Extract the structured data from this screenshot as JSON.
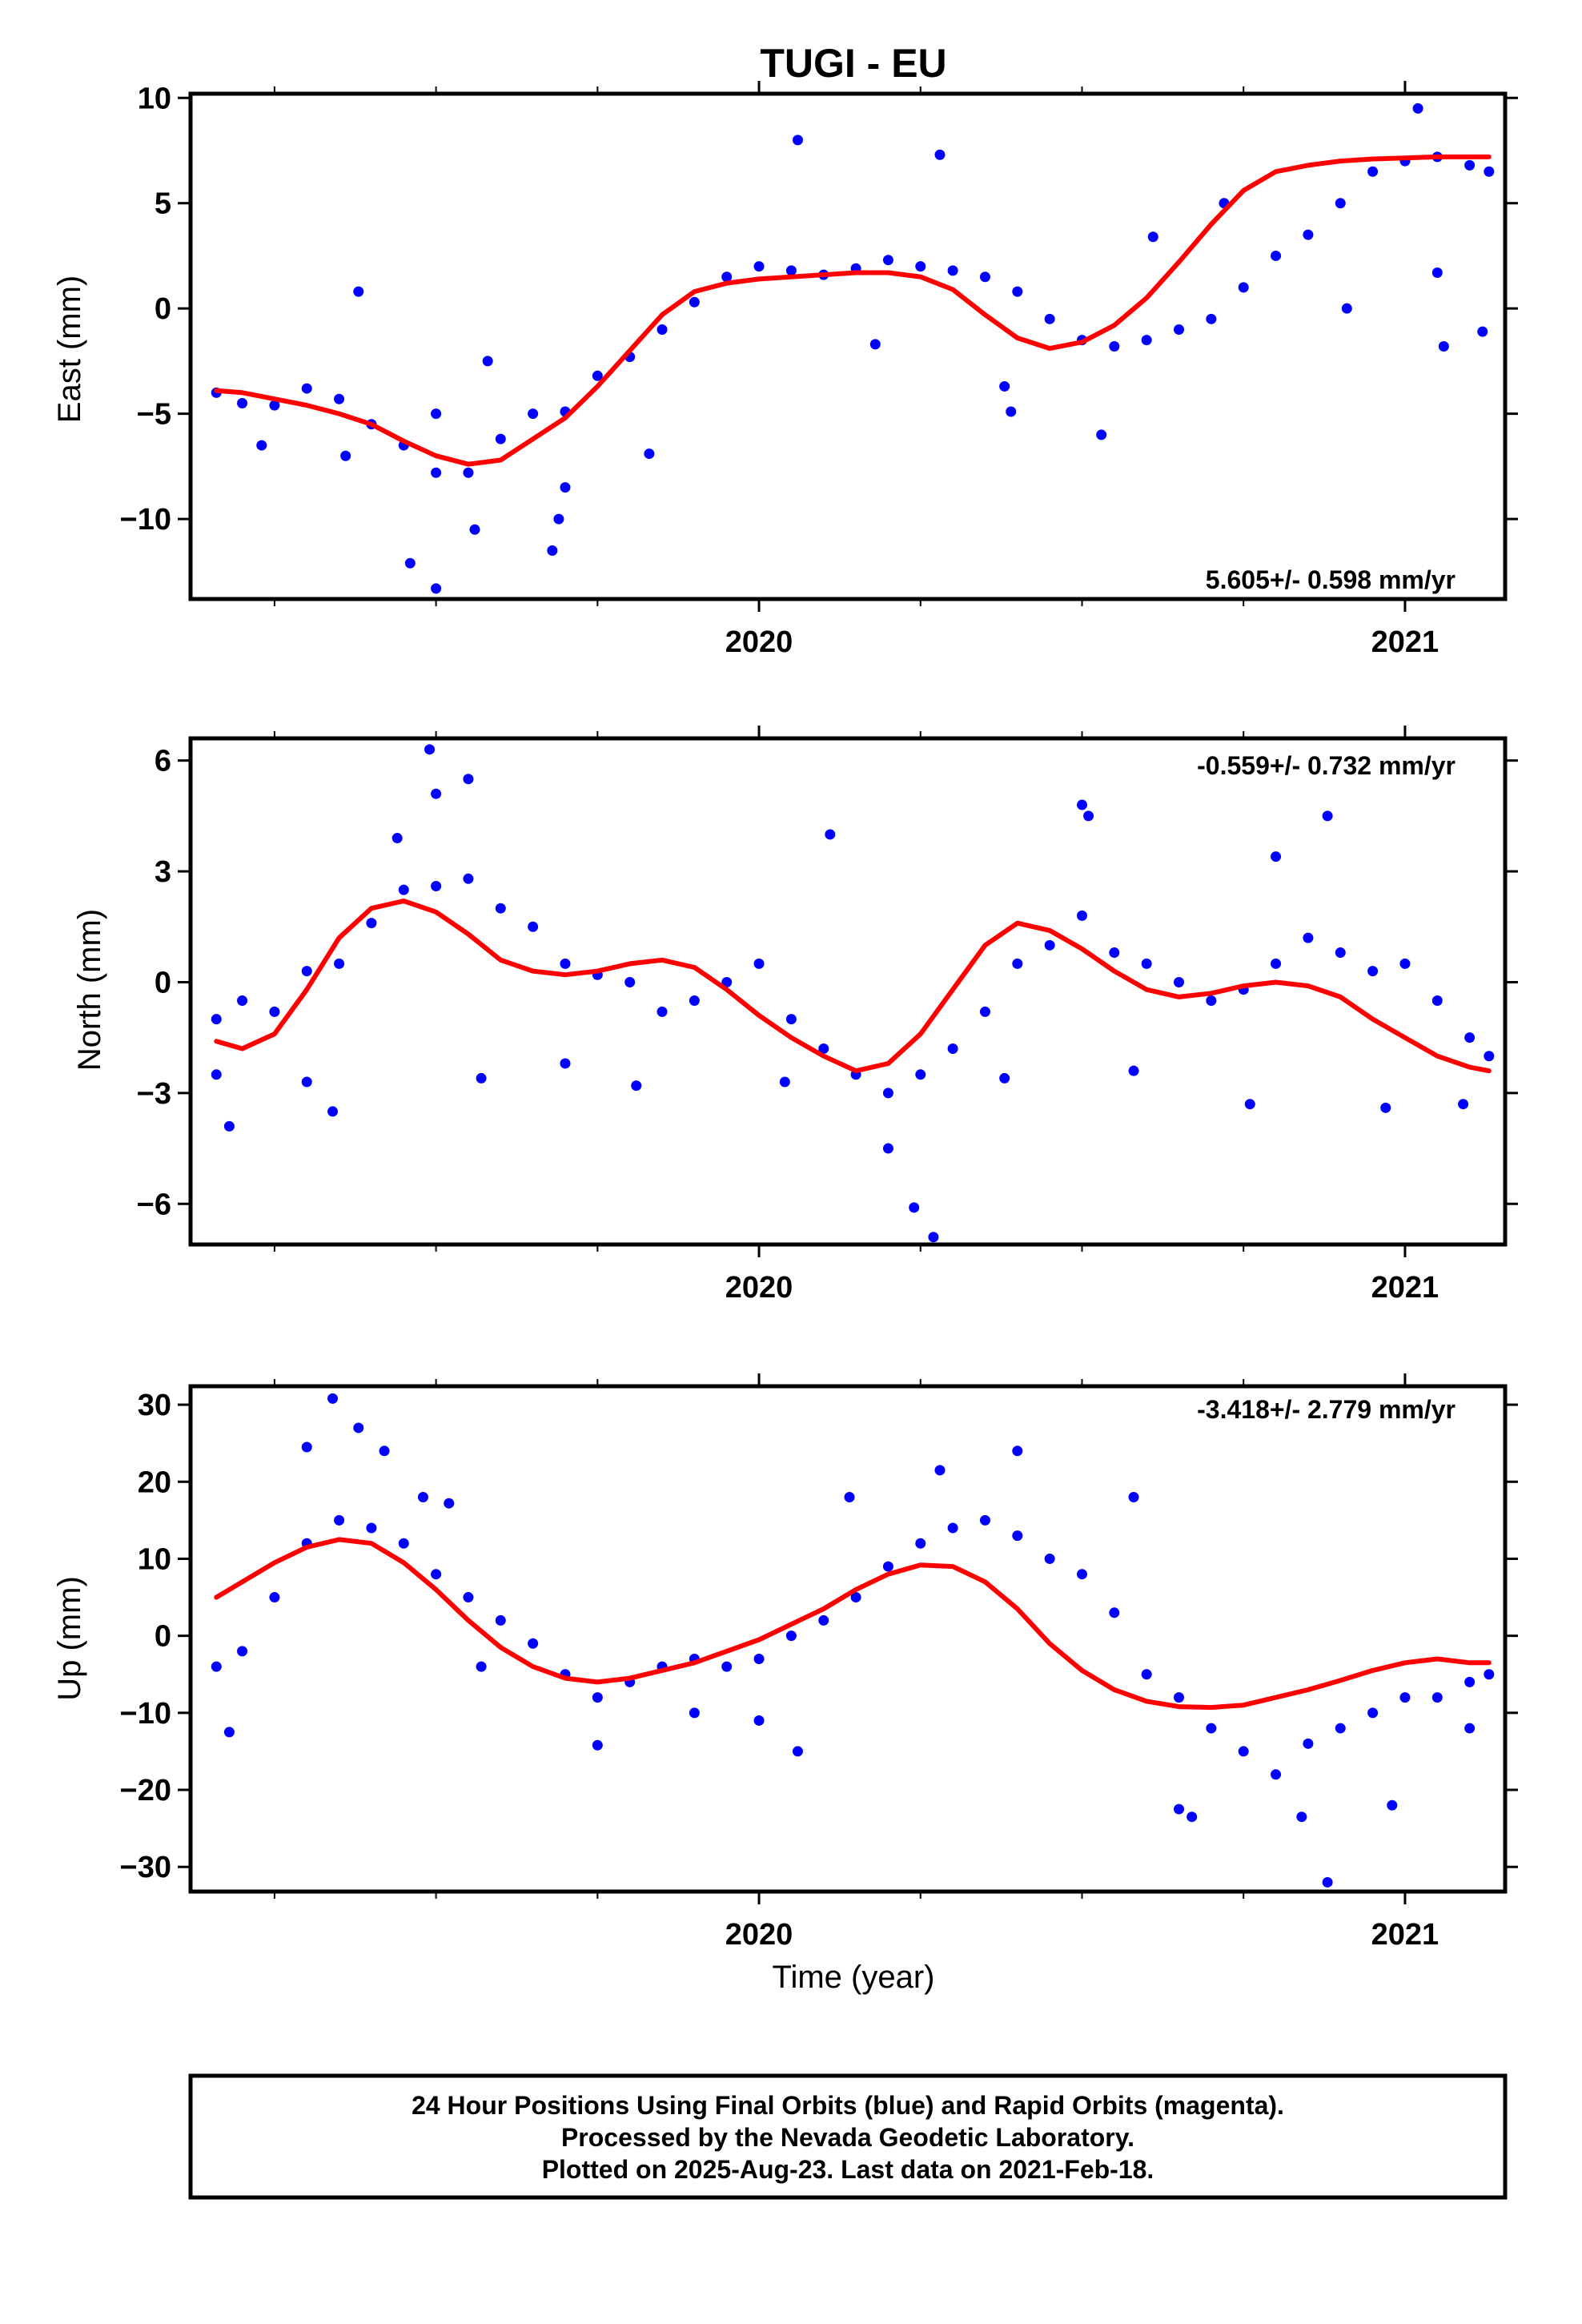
{
  "title": "TUGI - EU",
  "caption": {
    "line1": "24 Hour Positions Using Final Orbits (blue) and Rapid Orbits (magenta).",
    "line2": "Processed by the Nevada Geodetic Laboratory.",
    "line3": "Plotted on 2025-Aug-23. Last data on 2021-Feb-18."
  },
  "colors": {
    "points": "#0000ff",
    "model": "#ff0000",
    "frame": "#000000"
  },
  "chart_data": [
    {
      "type": "scatter",
      "ylabel": "East (mm)",
      "xlabel": "",
      "rate_label": "5.605+/- 0.598 mm/yr",
      "rate_position": "bottom-right",
      "xlim": [
        2019.12,
        2021.155
      ],
      "ylim": [
        -13.8,
        10.2
      ],
      "xticks": [
        2020,
        2021
      ],
      "xminor": [
        2019.25,
        2019.5,
        2019.75,
        2020.25,
        2020.5,
        2020.75
      ],
      "yticks": [
        10,
        5,
        0,
        -5,
        -10
      ],
      "grid": false,
      "series": [
        {
          "x": [
            2019.16,
            2019.2,
            2019.25,
            2019.3,
            2019.35,
            2019.4,
            2019.45,
            2019.5,
            2019.55,
            2019.6,
            2019.65,
            2019.7,
            2019.75,
            2019.8,
            2019.85,
            2019.9,
            2019.95,
            2020.0,
            2020.05,
            2020.1,
            2020.15,
            2020.2,
            2020.25,
            2020.3,
            2020.35,
            2020.4,
            2020.45,
            2020.5,
            2020.55,
            2020.6,
            2020.65,
            2020.7,
            2020.75,
            2020.8,
            2020.85,
            2020.9,
            2020.95,
            2021.0,
            2021.05,
            2021.1,
            2021.13
          ],
          "y": [
            -4.0,
            -4.5,
            -4.6,
            -3.8,
            -4.3,
            -5.5,
            -6.5,
            -7.8,
            -7.8,
            -6.2,
            -5.0,
            -4.9,
            -3.2,
            -2.3,
            -1.0,
            0.3,
            1.5,
            2.0,
            1.8,
            1.6,
            1.9,
            2.3,
            2.0,
            1.8,
            1.5,
            0.8,
            -0.5,
            -1.5,
            -1.8,
            -1.5,
            -1.0,
            -0.5,
            1.0,
            2.5,
            3.5,
            5.0,
            6.5,
            7.0,
            7.2,
            6.8,
            6.5
          ]
        },
        {
          "x": [
            2019.23,
            2019.36,
            2019.38,
            2019.46,
            2019.5,
            2019.5,
            2019.56,
            2019.58,
            2019.68,
            2019.69,
            2019.7,
            2019.83,
            2020.06,
            2020.18,
            2020.28,
            2020.38,
            2020.39,
            2020.53,
            2020.61,
            2020.72,
            2020.91,
            2021.02,
            2021.05,
            2021.06,
            2021.12
          ],
          "y": [
            -6.5,
            -7.0,
            0.8,
            -12.1,
            -13.3,
            -5.0,
            -10.5,
            -2.5,
            -11.5,
            -10.0,
            -8.5,
            -6.9,
            8.0,
            -1.7,
            7.3,
            -3.7,
            -4.9,
            -6.0,
            3.4,
            5.0,
            0.0,
            9.5,
            1.7,
            -1.8,
            -1.1
          ]
        },
        {
          "x": [
            2019.16,
            2019.2,
            2019.25,
            2019.3,
            2019.35,
            2019.4,
            2019.45,
            2019.5,
            2019.55,
            2019.6,
            2019.65,
            2019.7,
            2019.75,
            2019.8,
            2019.85,
            2019.9,
            2019.95,
            2020.0,
            2020.05,
            2020.1,
            2020.15,
            2020.2,
            2020.25,
            2020.3,
            2020.35,
            2020.4,
            2020.45,
            2020.5,
            2020.55,
            2020.6,
            2020.65,
            2020.7,
            2020.75,
            2020.8,
            2020.85,
            2020.9,
            2020.95,
            2021.0,
            2021.05,
            2021.1,
            2021.13
          ],
          "y": [
            -3.9,
            -4.0,
            -4.3,
            -4.6,
            -5.0,
            -5.5,
            -6.3,
            -7.0,
            -7.4,
            -7.2,
            -6.2,
            -5.2,
            -3.7,
            -2.0,
            -0.3,
            0.8,
            1.2,
            1.4,
            1.5,
            1.6,
            1.7,
            1.7,
            1.5,
            0.9,
            -0.3,
            -1.4,
            -1.9,
            -1.6,
            -0.8,
            0.5,
            2.2,
            4.0,
            5.6,
            6.5,
            6.8,
            7.0,
            7.1,
            7.15,
            7.2,
            7.2,
            7.2
          ]
        }
      ],
      "series_roles": [
        "daily positions",
        "outliers",
        "model fit"
      ]
    },
    {
      "type": "scatter",
      "ylabel": "North (mm)",
      "xlabel": "",
      "rate_label": "-0.559+/- 0.732 mm/yr",
      "rate_position": "top-right",
      "xlim": [
        2019.12,
        2021.155
      ],
      "ylim": [
        -7.1,
        6.6
      ],
      "xticks": [
        2020,
        2021
      ],
      "xminor": [
        2019.25,
        2019.5,
        2019.75,
        2020.25,
        2020.5,
        2020.75
      ],
      "yticks": [
        6,
        3,
        0,
        -3,
        -6
      ],
      "grid": false,
      "series": [
        {
          "x": [
            2019.16,
            2019.2,
            2019.25,
            2019.3,
            2019.35,
            2019.4,
            2019.45,
            2019.5,
            2019.55,
            2019.6,
            2019.65,
            2019.7,
            2019.75,
            2019.8,
            2019.85,
            2019.9,
            2019.95,
            2020.0,
            2020.05,
            2020.1,
            2020.15,
            2020.2,
            2020.25,
            2020.3,
            2020.35,
            2020.4,
            2020.45,
            2020.5,
            2020.55,
            2020.6,
            2020.65,
            2020.7,
            2020.75,
            2020.8,
            2020.85,
            2020.9,
            2020.95,
            2021.0,
            2021.05,
            2021.1,
            2021.13
          ],
          "y": [
            -1.0,
            -0.5,
            -0.8,
            0.3,
            0.5,
            1.6,
            2.5,
            2.6,
            2.8,
            2.0,
            1.5,
            0.5,
            0.2,
            0.0,
            -0.8,
            -0.5,
            0.0,
            0.5,
            -1.0,
            -1.8,
            -2.5,
            -3.0,
            -2.5,
            -1.8,
            -0.8,
            0.5,
            1.0,
            1.8,
            0.8,
            0.5,
            0.0,
            -0.5,
            -0.2,
            0.5,
            1.2,
            0.8,
            0.3,
            0.5,
            -0.5,
            -1.5,
            -2.0
          ]
        },
        {
          "x": [
            2019.16,
            2019.18,
            2019.3,
            2019.34,
            2019.44,
            2019.49,
            2019.5,
            2019.55,
            2019.57,
            2019.7,
            2019.81,
            2020.04,
            2020.11,
            2020.2,
            2020.24,
            2020.27,
            2020.38,
            2020.5,
            2020.51,
            2020.58,
            2020.76,
            2020.8,
            2020.88,
            2020.97,
            2021.09
          ],
          "y": [
            -2.5,
            -3.9,
            -2.7,
            -3.5,
            3.9,
            6.3,
            5.1,
            5.5,
            -2.6,
            -2.2,
            -2.8,
            -2.7,
            4.0,
            -4.5,
            -6.1,
            -6.9,
            -2.6,
            4.8,
            4.5,
            -2.4,
            -3.3,
            3.4,
            4.5,
            -3.4,
            -3.3
          ]
        },
        {
          "x": [
            2019.16,
            2019.2,
            2019.25,
            2019.3,
            2019.35,
            2019.4,
            2019.45,
            2019.5,
            2019.55,
            2019.6,
            2019.65,
            2019.7,
            2019.75,
            2019.8,
            2019.85,
            2019.9,
            2019.95,
            2020.0,
            2020.05,
            2020.1,
            2020.15,
            2020.2,
            2020.25,
            2020.3,
            2020.35,
            2020.4,
            2020.45,
            2020.5,
            2020.55,
            2020.6,
            2020.65,
            2020.7,
            2020.75,
            2020.8,
            2020.85,
            2020.9,
            2020.95,
            2021.0,
            2021.05,
            2021.1,
            2021.13
          ],
          "y": [
            -1.6,
            -1.8,
            -1.4,
            -0.2,
            1.2,
            2.0,
            2.2,
            1.9,
            1.3,
            0.6,
            0.3,
            0.2,
            0.3,
            0.5,
            0.6,
            0.4,
            -0.2,
            -0.9,
            -1.5,
            -2.0,
            -2.4,
            -2.2,
            -1.4,
            -0.2,
            1.0,
            1.6,
            1.4,
            0.9,
            0.3,
            -0.2,
            -0.4,
            -0.3,
            -0.1,
            0.0,
            -0.1,
            -0.4,
            -1.0,
            -1.5,
            -2.0,
            -2.3,
            -2.4
          ]
        }
      ],
      "series_roles": [
        "daily positions",
        "outliers",
        "model fit"
      ]
    },
    {
      "type": "scatter",
      "ylabel": "Up (mm)",
      "xlabel": "Time (year)",
      "rate_label": "-3.418+/- 2.779 mm/yr",
      "rate_position": "top-right",
      "xlim": [
        2019.12,
        2021.155
      ],
      "ylim": [
        -33.2,
        32.4
      ],
      "xticks": [
        2020,
        2021
      ],
      "xminor": [
        2019.25,
        2019.5,
        2019.75,
        2020.25,
        2020.5,
        2020.75
      ],
      "yticks": [
        30,
        20,
        10,
        0,
        -10,
        -20,
        -30
      ],
      "grid": false,
      "series": [
        {
          "x": [
            2019.16,
            2019.2,
            2019.25,
            2019.3,
            2019.35,
            2019.4,
            2019.45,
            2019.5,
            2019.55,
            2019.6,
            2019.65,
            2019.7,
            2019.75,
            2019.8,
            2019.85,
            2019.9,
            2019.95,
            2020.0,
            2020.05,
            2020.1,
            2020.15,
            2020.2,
            2020.25,
            2020.3,
            2020.35,
            2020.4,
            2020.45,
            2020.5,
            2020.55,
            2020.6,
            2020.65,
            2020.7,
            2020.75,
            2020.8,
            2020.85,
            2020.9,
            2020.95,
            2021.0,
            2021.05,
            2021.1,
            2021.13
          ],
          "y": [
            -4.0,
            -2.0,
            5.0,
            12.0,
            15.0,
            14.0,
            12.0,
            8.0,
            5.0,
            2.0,
            -1.0,
            -5.0,
            -8.0,
            -6.0,
            -4.0,
            -3.0,
            -4.0,
            -3.0,
            0.0,
            2.0,
            5.0,
            9.0,
            12.0,
            14.0,
            15.0,
            13.0,
            10.0,
            8.0,
            3.0,
            -5.0,
            -8.0,
            -12.0,
            -15.0,
            -18.0,
            -14.0,
            -12.0,
            -10.0,
            -8.0,
            -8.0,
            -6.0,
            -5.0
          ]
        },
        {
          "x": [
            2019.18,
            2019.3,
            2019.34,
            2019.38,
            2019.42,
            2019.48,
            2019.52,
            2019.57,
            2019.75,
            2019.9,
            2020.0,
            2020.06,
            2020.14,
            2020.28,
            2020.4,
            2020.58,
            2020.65,
            2020.67,
            2020.84,
            2020.88,
            2020.98,
            2021.1
          ],
          "y": [
            -12.5,
            24.5,
            30.8,
            27.0,
            24.0,
            18.0,
            17.2,
            -4.0,
            -14.2,
            -10.0,
            -11.0,
            -15.0,
            18.0,
            21.5,
            24.0,
            18.0,
            -22.5,
            -23.5,
            -23.5,
            -32.0,
            -22.0,
            -12.0
          ]
        },
        {
          "x": [
            2019.16,
            2019.2,
            2019.25,
            2019.3,
            2019.35,
            2019.4,
            2019.45,
            2019.5,
            2019.55,
            2019.6,
            2019.65,
            2019.7,
            2019.75,
            2019.8,
            2019.85,
            2019.9,
            2019.95,
            2020.0,
            2020.05,
            2020.1,
            2020.15,
            2020.2,
            2020.25,
            2020.3,
            2020.35,
            2020.4,
            2020.45,
            2020.5,
            2020.55,
            2020.6,
            2020.65,
            2020.7,
            2020.75,
            2020.8,
            2020.85,
            2020.9,
            2020.95,
            2021.0,
            2021.05,
            2021.1,
            2021.13
          ],
          "y": [
            5.0,
            7.0,
            9.5,
            11.5,
            12.5,
            12.0,
            9.5,
            6.0,
            2.0,
            -1.5,
            -4.0,
            -5.5,
            -6.0,
            -5.5,
            -4.5,
            -3.5,
            -2.0,
            -0.5,
            1.5,
            3.5,
            6.0,
            8.0,
            9.2,
            9.0,
            7.0,
            3.5,
            -1.0,
            -4.5,
            -7.0,
            -8.5,
            -9.2,
            -9.3,
            -9.0,
            -8.0,
            -7.0,
            -5.8,
            -4.5,
            -3.5,
            -3.0,
            -3.5,
            -3.5
          ]
        }
      ],
      "series_roles": [
        "daily positions",
        "outliers",
        "model fit"
      ]
    }
  ]
}
